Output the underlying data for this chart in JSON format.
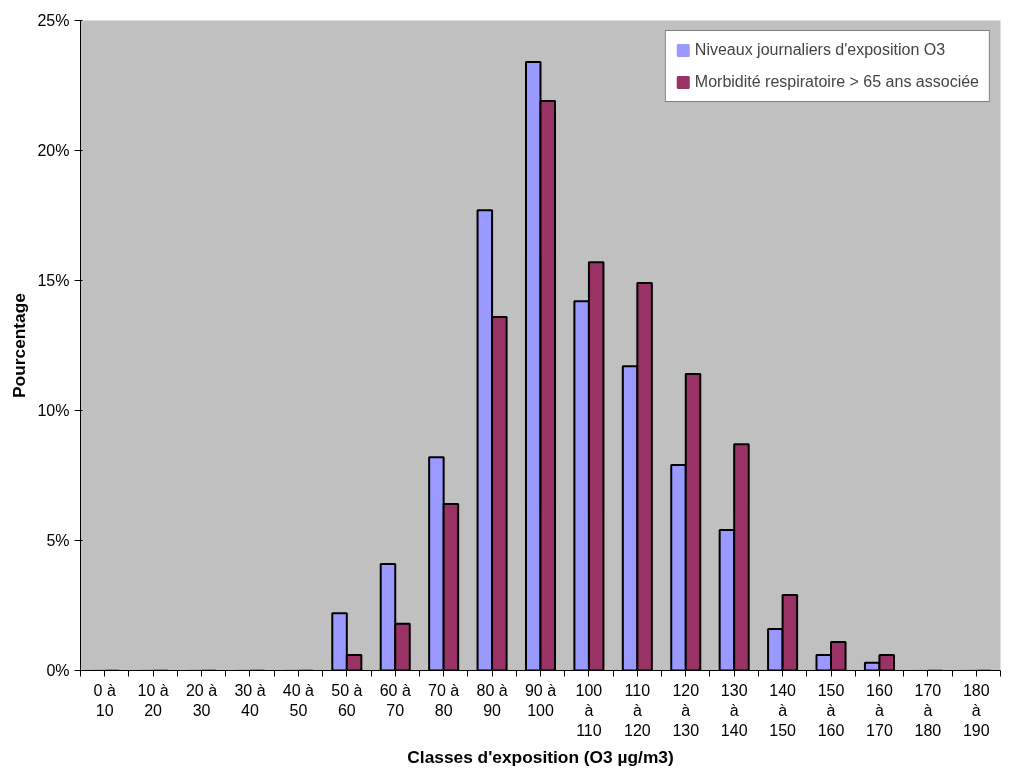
{
  "chart_data": {
    "type": "bar",
    "xlabel": "Classes d'exposition (O3 µg/m3)",
    "ylabel": "Pourcentage",
    "categories": [
      "0 à 10",
      "10 à 20",
      "20 à 30",
      "30 à 40",
      "40 à 50",
      "50 à 60",
      "60 à 70",
      "70 à 80",
      "80 à 90",
      "90 à 100",
      "100 à 110",
      "110 à 120",
      "120 à 130",
      "130 à 140",
      "140 à 150",
      "150 à 160",
      "160 à 170",
      "170 à 180",
      "180 à 190"
    ],
    "series": [
      {
        "name": "Niveaux journaliers d'exposition O3",
        "color": "#9999ff",
        "values": [
          0,
          0,
          0,
          0,
          0,
          2.2,
          4.1,
          8.2,
          17.7,
          23.4,
          14.2,
          11.7,
          7.9,
          5.4,
          1.6,
          0.6,
          0.3,
          0,
          0
        ]
      },
      {
        "name": "Morbidité respiratoire > 65 ans associée",
        "color": "#993366",
        "values": [
          0,
          0,
          0,
          0,
          0,
          0.6,
          1.8,
          6.4,
          13.6,
          21.9,
          15.7,
          14.9,
          11.4,
          8.7,
          2.9,
          1.1,
          0.6,
          0,
          0
        ]
      }
    ],
    "ylim": [
      0,
      25
    ],
    "yticks": [
      {
        "value": 0,
        "label": "0%"
      },
      {
        "value": 5,
        "label": "5%"
      },
      {
        "value": 10,
        "label": "10%"
      },
      {
        "value": 15,
        "label": "15%"
      },
      {
        "value": 20,
        "label": "20%"
      },
      {
        "value": 25,
        "label": "25%"
      }
    ],
    "grid": false,
    "legend": "top right"
  }
}
